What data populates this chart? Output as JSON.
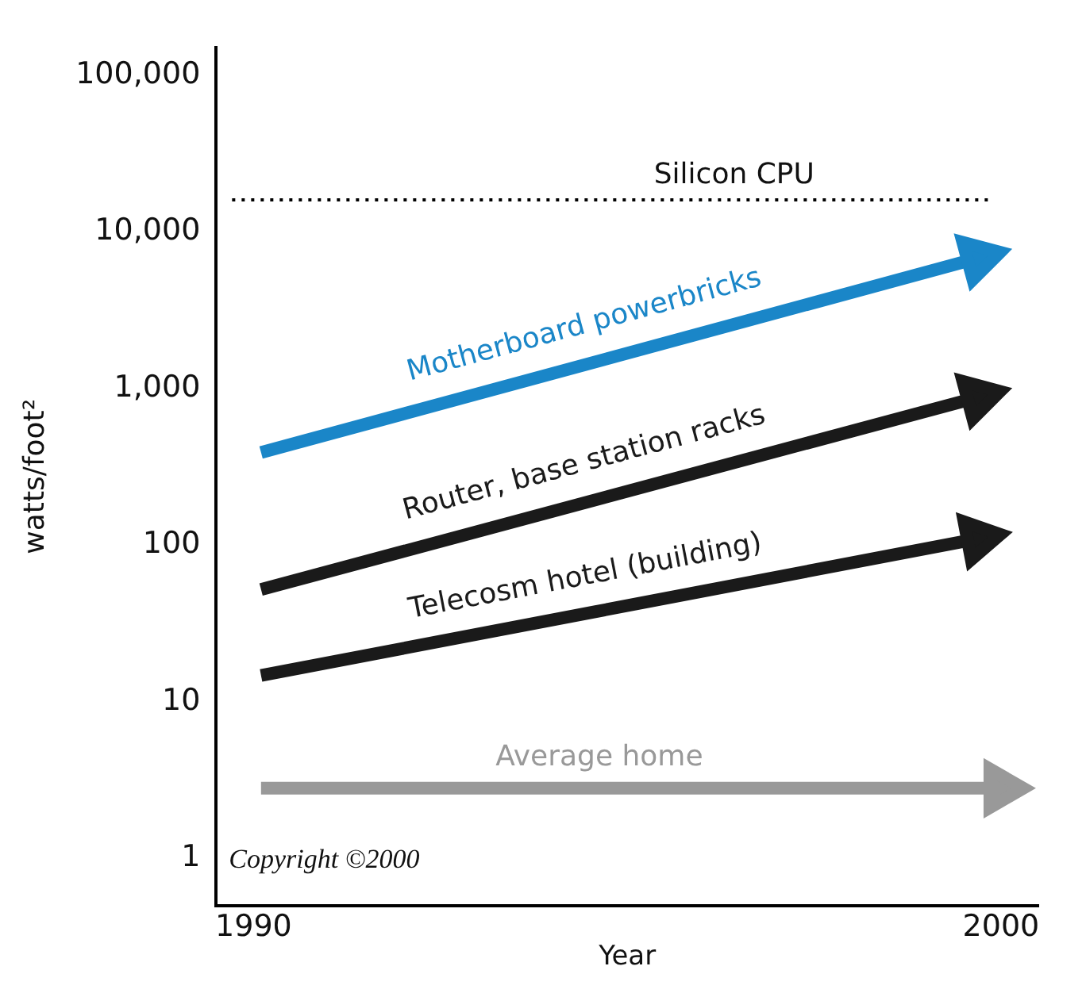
{
  "chart_data": {
    "type": "line",
    "xlabel": "Year",
    "ylabel": "watts/foot²",
    "log": "y",
    "x": [
      1990.1,
      1999.7
    ],
    "series": [
      {
        "name": "Motherboard powerbricks",
        "color": "#1a86c8",
        "values": [
          390,
          6800
        ]
      },
      {
        "name": "Router, base station racks",
        "color": "#1a1a1a",
        "values": [
          52,
          880
        ]
      },
      {
        "name": "Telecosm hotel (building)",
        "color": "#1a1a1a",
        "values": [
          14.7,
          110
        ]
      },
      {
        "name": "Average home",
        "color": "#999999",
        "x": [
          1990.1,
          2000
        ],
        "values": [
          2.8,
          2.8
        ]
      }
    ],
    "xlim": [
      1989.5,
      2000.5
    ],
    "xticks": [
      1990,
      2000
    ],
    "ylim": [
      0.5,
      150000
    ],
    "yticks": [
      {
        "value": 1,
        "label": "1"
      },
      {
        "value": 10,
        "label": "10"
      },
      {
        "value": 100,
        "label": "100"
      },
      {
        "value": 1000,
        "label": "1,000"
      },
      {
        "value": 10000,
        "label": "10,000"
      },
      {
        "value": 100000,
        "label": "100,000"
      }
    ],
    "ref_lines": [
      {
        "axis": "y",
        "value": 16000,
        "label": "Silicon CPU",
        "line_style": "dotted",
        "color": "#000000"
      }
    ],
    "annotations": [
      "Copyright ©2000"
    ],
    "grid": false,
    "legend": false,
    "marker": "triangle",
    "line_style": "solid"
  }
}
